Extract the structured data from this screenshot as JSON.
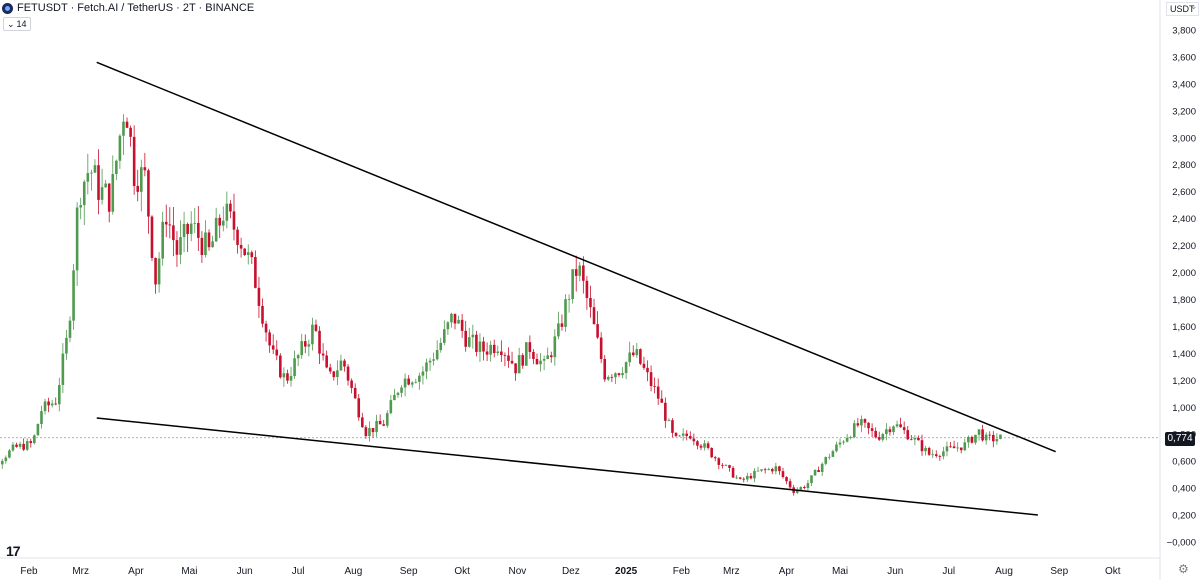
{
  "header": {
    "symbol_line": "FETUSDT · Fetch.AI / TetherUS · 2T · BINANCE",
    "indicator_label": "14",
    "currency": "USDT"
  },
  "chart_data": {
    "type": "candlestick",
    "title": "FETUSDT · Fetch.AI / TetherUS · 2T · BINANCE",
    "currency": "USDT",
    "ylim": [
      -0.1,
      4.0
    ],
    "y_ticks": [
      -0.0,
      0.2,
      0.4,
      0.6,
      0.8,
      1.0,
      1.2,
      1.4,
      1.6,
      1.8,
      2.0,
      2.2,
      2.4,
      2.6,
      2.8,
      3.0,
      3.2,
      3.4,
      3.6,
      3.8
    ],
    "y_tick_labels": [
      "−0,000",
      "0,200",
      "0,400",
      "0,600",
      "0,800",
      "1,000",
      "1,200",
      "1,400",
      "1,600",
      "1,800",
      "2,000",
      "2,200",
      "2,400",
      "2,600",
      "2,800",
      "3,000",
      "3,200",
      "3,400",
      "3,600",
      "3,800"
    ],
    "x_labels": [
      "Feb",
      "Mrz",
      "Apr",
      "Mai",
      "Jun",
      "Jul",
      "Aug",
      "Sep",
      "Okt",
      "Nov",
      "Dez",
      "2025",
      "Feb",
      "Mrz",
      "Apr",
      "Mai",
      "Jun",
      "Jul",
      "Aug",
      "Sep",
      "Okt"
    ],
    "x_label_bold": "2025",
    "last_price": 0.774,
    "last_price_label": "0,774",
    "colors": {
      "up": "#4f9a4f",
      "down": "#c8102e",
      "trendline": "#000000",
      "price_line": "#9598a1"
    },
    "trendlines": [
      {
        "name": "upper",
        "from": {
          "date": "2024-03-10",
          "price": 3.56
        },
        "to": {
          "date": "2025-08-30",
          "price": 0.67
        }
      },
      {
        "name": "lower",
        "from": {
          "date": "2024-03-10",
          "price": 0.92
        },
        "to": {
          "date": "2025-08-20",
          "price": 0.2
        }
      }
    ],
    "anchors": [
      [
        "2024-01-01",
        0.68
      ],
      [
        "2024-01-12",
        0.55
      ],
      [
        "2024-01-26",
        0.7
      ],
      [
        "2024-02-05",
        0.73
      ],
      [
        "2024-02-10",
        0.98
      ],
      [
        "2024-02-18",
        1.05
      ],
      [
        "2024-02-25",
        1.55
      ],
      [
        "2024-03-02",
        2.6
      ],
      [
        "2024-03-08",
        2.78
      ],
      [
        "2024-03-14",
        2.6
      ],
      [
        "2024-03-20",
        2.55
      ],
      [
        "2024-03-28",
        3.3
      ],
      [
        "2024-04-02",
        2.75
      ],
      [
        "2024-04-08",
        2.7
      ],
      [
        "2024-04-14",
        1.95
      ],
      [
        "2024-04-20",
        2.45
      ],
      [
        "2024-04-26",
        2.15
      ],
      [
        "2024-05-04",
        2.35
      ],
      [
        "2024-05-14",
        2.15
      ],
      [
        "2024-05-22",
        2.45
      ],
      [
        "2024-05-30",
        2.3
      ],
      [
        "2024-06-08",
        2.0
      ],
      [
        "2024-06-18",
        1.4
      ],
      [
        "2024-06-26",
        1.2
      ],
      [
        "2024-07-04",
        1.4
      ],
      [
        "2024-07-12",
        1.6
      ],
      [
        "2024-07-20",
        1.2
      ],
      [
        "2024-07-28",
        1.35
      ],
      [
        "2024-08-04",
        1.05
      ],
      [
        "2024-08-10",
        0.82
      ],
      [
        "2024-08-20",
        0.88
      ],
      [
        "2024-08-30",
        1.2
      ],
      [
        "2024-09-10",
        1.25
      ],
      [
        "2024-09-20",
        1.45
      ],
      [
        "2024-09-28",
        1.68
      ],
      [
        "2024-10-06",
        1.5
      ],
      [
        "2024-10-14",
        1.42
      ],
      [
        "2024-10-24",
        1.48
      ],
      [
        "2024-11-02",
        1.3
      ],
      [
        "2024-11-10",
        1.45
      ],
      [
        "2024-11-18",
        1.3
      ],
      [
        "2024-11-26",
        1.55
      ],
      [
        "2024-12-03",
        1.9
      ],
      [
        "2024-12-07",
        2.05
      ],
      [
        "2024-12-14",
        1.7
      ],
      [
        "2024-12-22",
        1.25
      ],
      [
        "2024-12-30",
        1.28
      ],
      [
        "2025-01-08",
        1.4
      ],
      [
        "2025-01-14",
        1.25
      ],
      [
        "2025-01-22",
        1.05
      ],
      [
        "2025-01-30",
        0.75
      ],
      [
        "2025-02-08",
        0.8
      ],
      [
        "2025-02-18",
        0.68
      ],
      [
        "2025-02-28",
        0.55
      ],
      [
        "2025-03-08",
        0.45
      ],
      [
        "2025-03-18",
        0.52
      ],
      [
        "2025-03-28",
        0.55
      ],
      [
        "2025-04-07",
        0.38
      ],
      [
        "2025-04-14",
        0.42
      ],
      [
        "2025-04-24",
        0.6
      ],
      [
        "2025-05-06",
        0.78
      ],
      [
        "2025-05-14",
        0.88
      ],
      [
        "2025-05-24",
        0.78
      ],
      [
        "2025-06-02",
        0.88
      ],
      [
        "2025-06-12",
        0.78
      ],
      [
        "2025-06-22",
        0.65
      ],
      [
        "2025-07-02",
        0.68
      ],
      [
        "2025-07-12",
        0.72
      ],
      [
        "2025-07-20",
        0.82
      ],
      [
        "2025-07-24",
        0.76
      ],
      [
        "2025-07-30",
        0.77
      ]
    ]
  }
}
